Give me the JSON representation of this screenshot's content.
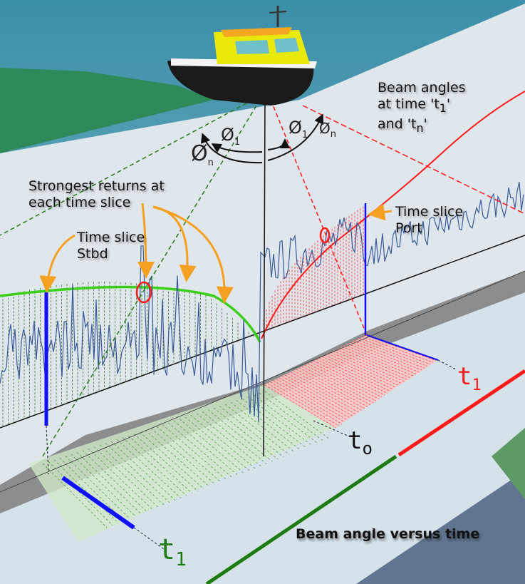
{
  "labels": {
    "beam_angles_line1": "Beam angles",
    "beam_angles_line2": "at time 't",
    "beam_angles_sub1": "1",
    "beam_angles_line3": "and 't",
    "beam_angles_subn": "n",
    "strongest_returns_line1": "Strongest returns at",
    "strongest_returns_line2": "each time slice",
    "time_slice_stbd_line1": "Time slice",
    "time_slice_stbd_line2": "Stbd",
    "time_slice_port_line1": "Time slice",
    "time_slice_port_line2": "Port",
    "caption": "Beam angle versus time"
  },
  "angles": {
    "phi": "Ø",
    "sub_1": "1",
    "sub_n": "n"
  },
  "time_labels": {
    "t0": "t",
    "t0_sub": "o",
    "t1_port": "t",
    "t1_port_sub": "1",
    "t1_stbd": "t",
    "t1_stbd_sub": "1"
  },
  "colors": {
    "starboard": "#2e9b1e",
    "port": "#ff1a1a",
    "time_slice": "#1010ff",
    "signal": "#3a5a9a",
    "annotation_arrow": "#f5a020",
    "hull": "#1a1a1a",
    "cabin": "#e8e80a"
  }
}
